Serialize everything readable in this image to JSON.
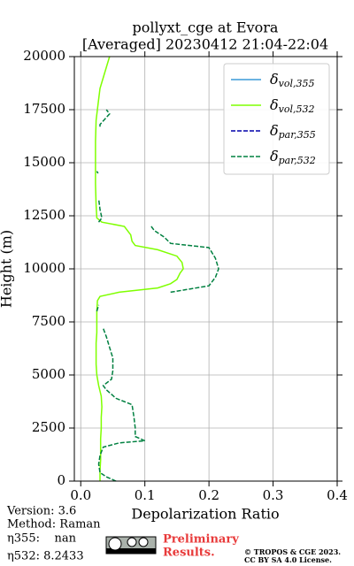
{
  "chart_data": {
    "type": "line",
    "title": "pollyxt_cge at Evora",
    "subtitle": "[Averaged] 20230412 21:04-22:04",
    "x_label": "Depolarization Ratio",
    "y_label": "Height (m)",
    "xlim": [
      -0.01,
      0.4
    ],
    "ylim": [
      0,
      20000
    ],
    "xticks": [
      {
        "value": 0,
        "label": "0.0"
      },
      0.1,
      0.2,
      0.3,
      0.4
    ],
    "yticks": [
      0,
      2500,
      5000,
      7500,
      10000,
      12500,
      15000,
      17500,
      20000
    ],
    "grid": true,
    "legend": "upper right",
    "series": [
      {
        "name": "δvol,355",
        "color": "#3a9ad9",
        "dash": false,
        "x": [],
        "y": []
      },
      {
        "name": "δvol,532",
        "color": "#7fff00",
        "dash": false,
        "x": [
          0.03,
          0.03,
          0.031,
          0.031,
          0.031,
          0.032,
          0.032,
          0.033,
          0.032,
          0.028,
          0.025,
          0.024,
          0.024,
          0.024,
          0.025,
          0.025,
          0.025,
          0.026,
          0.03,
          0.06,
          0.12,
          0.14,
          0.15,
          0.155,
          0.16,
          0.158,
          0.15,
          0.12,
          0.085,
          0.08,
          0.078,
          0.068,
          0.033,
          0.025,
          0.024,
          0.023,
          0.023,
          0.023,
          0.024,
          0.028,
          0.03,
          0.035,
          0.04,
          0.045
        ],
        "y": [
          0,
          500,
          1000,
          1500,
          2000,
          2500,
          3000,
          3500,
          4000,
          4500,
          5000,
          5500,
          6000,
          6500,
          7000,
          7500,
          8000,
          8500,
          8700,
          8900,
          9100,
          9300,
          9500,
          9800,
          10000,
          10300,
          10600,
          10900,
          11100,
          11300,
          11600,
          12000,
          12200,
          12400,
          13000,
          14000,
          15000,
          16000,
          17000,
          18000,
          18500,
          19000,
          19500,
          20000
        ]
      },
      {
        "name": "δpar,355",
        "color": "#0000aa",
        "dash": true,
        "x": [],
        "y": []
      },
      {
        "name": "δpar,532",
        "color": "#008040",
        "dash": true,
        "x": [
          0.055,
          0.04,
          0.03,
          0.028,
          0.03,
          0.035,
          0.06,
          0.1,
          0.085,
          0.085,
          0.083,
          0.08,
          0.055,
          0.04,
          0.035,
          0.048,
          0.05,
          0.05,
          0.045,
          0.04,
          0.035,
          null,
          0.025,
          0.028,
          null,
          0.14,
          0.2,
          0.21,
          0.215,
          0.21,
          0.2,
          0.14,
          0.13,
          0.115,
          0.11,
          null,
          0.028,
          0.033,
          0.03,
          0.028,
          null,
          0.027,
          0.025,
          null,
          0.03,
          0.03,
          0.045,
          0.04
        ],
        "y": [
          0,
          200,
          400,
          800,
          1200,
          1600,
          1800,
          1900,
          2100,
          2500,
          3000,
          3600,
          3900,
          4300,
          4500,
          4800,
          5200,
          5800,
          6300,
          6800,
          7200,
          7500,
          8000,
          8300,
          8600,
          8900,
          9200,
          9600,
          10000,
          10500,
          11000,
          11200,
          11500,
          11800,
          12000,
          12100,
          12200,
          12400,
          12800,
          13300,
          13600,
          14500,
          14600,
          15000,
          16700,
          16800,
          17300,
          17500
        ]
      }
    ],
    "annotations": [
      "Version: 3.6",
      "Method: Raman",
      "η355:    nan",
      "η532: 8.2433",
      "Preliminary",
      "Results.",
      "© TROPOS & CGE 2023.",
      "CC BY SA 4.0 License."
    ]
  }
}
